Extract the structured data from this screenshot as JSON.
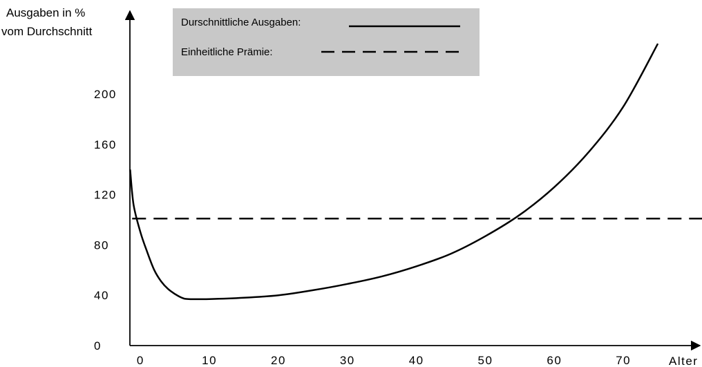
{
  "chart_data": {
    "type": "line",
    "ylabel_lines": [
      "Ausgaben in %",
      "vom Durchschnitt"
    ],
    "xlabel": "Alter",
    "xlim": [
      -1.5,
      82
    ],
    "ylim": [
      0,
      240
    ],
    "x_ticks": [
      0,
      10,
      20,
      30,
      40,
      50,
      60,
      70
    ],
    "y_ticks": [
      0,
      40,
      80,
      120,
      160,
      200
    ],
    "grid": false,
    "legend_position": "top-left",
    "legend": [
      {
        "label": "Durschnittliche Ausgaben:",
        "style": "solid"
      },
      {
        "label": "Einheitliche Prämie:",
        "style": "dashed"
      }
    ],
    "series": [
      {
        "name": "Durschnittliche Ausgaben",
        "style": "solid",
        "x": [
          -1.5,
          -1,
          0,
          1,
          2,
          3,
          4,
          5,
          6,
          7,
          10,
          15,
          20,
          25,
          30,
          35,
          40,
          45,
          50,
          55,
          60,
          65,
          70,
          75
        ],
        "y": [
          140,
          112,
          90,
          74,
          60,
          51,
          45,
          41,
          38,
          37,
          37,
          38,
          40,
          44,
          49,
          55,
          63,
          73,
          87,
          104,
          126,
          154,
          190,
          240
        ]
      },
      {
        "name": "Einheitliche Prämie",
        "style": "dashed",
        "x": [
          -1.2,
          82
        ],
        "y": [
          101,
          101
        ]
      }
    ],
    "colors": {
      "background": "#ffffff",
      "line": "#000000",
      "legend_box": "#c8c8c8"
    }
  }
}
